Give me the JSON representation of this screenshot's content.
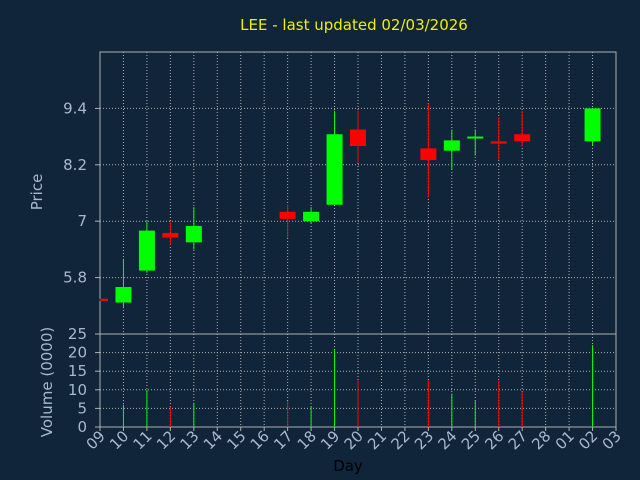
{
  "chart_data": {
    "type": "candlestick",
    "title": "LEE - last updated 02/03/2026",
    "xlabel": "Day",
    "price_panel": {
      "ylabel": "Price",
      "yticks": [
        5.8,
        7,
        8.2,
        9.4
      ],
      "ylim": [
        4.6,
        10.6
      ]
    },
    "volume_panel": {
      "ylabel": "Volume (0000)",
      "yticks": [
        0,
        5,
        10,
        15,
        20,
        25
      ],
      "ylim": [
        0,
        25
      ]
    },
    "x_tick_labels": [
      "09",
      "10",
      "11",
      "12",
      "13",
      "14",
      "15",
      "16",
      "17",
      "18",
      "19",
      "20",
      "21",
      "22",
      "23",
      "24",
      "25",
      "26",
      "27",
      "28",
      "01",
      "02",
      "03"
    ],
    "colors": {
      "up": "#00ff00",
      "down": "#ff0000",
      "background": "#10243a",
      "grid": "#b0b0b0",
      "title": "#f0f000",
      "axis_text": "#a8b8d0"
    },
    "candles": [
      {
        "day": "09",
        "open": 5.35,
        "high": 5.35,
        "low": 5.3,
        "close": 5.3,
        "volume": 0
      },
      {
        "day": "10",
        "open": 5.27,
        "high": 6.2,
        "low": 5.15,
        "close": 5.6,
        "volume": 6
      },
      {
        "day": "11",
        "open": 5.95,
        "high": 7.0,
        "low": 5.9,
        "close": 6.8,
        "volume": 10
      },
      {
        "day": "12",
        "open": 6.75,
        "high": 7.0,
        "low": 6.5,
        "close": 6.65,
        "volume": 5.5
      },
      {
        "day": "13",
        "open": 6.55,
        "high": 7.3,
        "low": 6.4,
        "close": 6.9,
        "volume": 6.5
      },
      {
        "day": "17",
        "open": 7.2,
        "high": 7.35,
        "low": 6.65,
        "close": 7.05,
        "volume": 7
      },
      {
        "day": "18",
        "open": 7.0,
        "high": 7.3,
        "low": 6.95,
        "close": 7.2,
        "volume": 5.5
      },
      {
        "day": "19",
        "open": 7.35,
        "high": 9.35,
        "low": 7.35,
        "close": 8.85,
        "volume": 21
      },
      {
        "day": "20",
        "open": 8.95,
        "high": 9.35,
        "low": 8.25,
        "close": 8.6,
        "volume": 12.5
      },
      {
        "day": "23",
        "open": 8.55,
        "high": 9.5,
        "low": 7.5,
        "close": 8.3,
        "volume": 12.5
      },
      {
        "day": "24",
        "open": 8.5,
        "high": 8.95,
        "low": 8.1,
        "close": 8.72,
        "volume": 9
      },
      {
        "day": "25",
        "open": 8.75,
        "high": 8.95,
        "low": 8.4,
        "close": 8.78,
        "volume": 7
      },
      {
        "day": "26",
        "open": 8.7,
        "high": 9.2,
        "low": 8.3,
        "close": 8.65,
        "volume": 12.5
      },
      {
        "day": "27",
        "open": 8.85,
        "high": 9.35,
        "low": 8.6,
        "close": 8.7,
        "volume": 9.5
      },
      {
        "day": "02",
        "open": 8.7,
        "high": 9.4,
        "low": 8.6,
        "close": 9.4,
        "volume": 22
      }
    ]
  }
}
